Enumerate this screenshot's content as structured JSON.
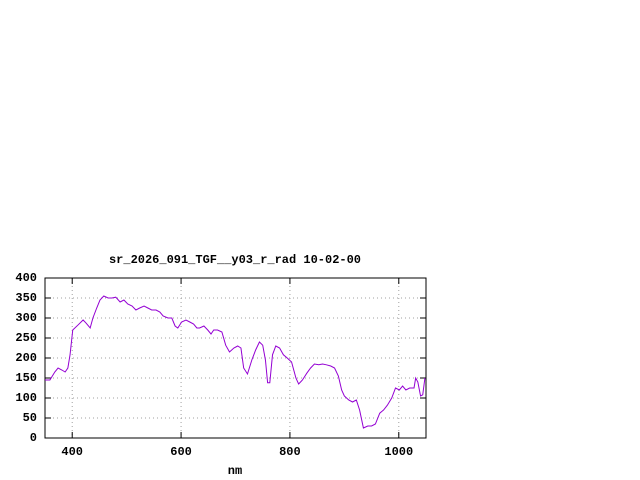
{
  "chart_data": {
    "type": "line",
    "title": "sr_2026_091_TGF__y03_r_rad 10-02-00",
    "x_label": "nm",
    "xlim": [
      350,
      1050
    ],
    "xticks": [
      400,
      600,
      800,
      1000
    ],
    "ylim": [
      0,
      400
    ],
    "yticks": [
      0,
      50,
      100,
      150,
      200,
      250,
      300,
      350,
      400
    ],
    "grid": true,
    "series": [
      {
        "color": "#9400d3",
        "x": [
          350,
          359,
          368,
          374,
          381,
          387,
          392,
          396,
          401,
          411,
          420,
          425,
          433,
          438,
          445,
          451,
          458,
          466,
          473,
          480,
          488,
          495,
          502,
          510,
          517,
          524,
          532,
          539,
          546,
          554,
          561,
          567,
          576,
          583,
          589,
          594,
          601,
          609,
          616,
          623,
          629,
          634,
          642,
          649,
          655,
          660,
          667,
          675,
          682,
          689,
          697,
          704,
          710,
          715,
          722,
          730,
          737,
          744,
          750,
          755,
          759,
          763,
          768,
          774,
          781,
          788,
          795,
          803,
          811,
          816,
          823,
          831,
          838,
          845,
          853,
          860,
          867,
          875,
          882,
          889,
          895,
          900,
          908,
          915,
          922,
          928,
          935,
          943,
          950,
          957,
          965,
          972,
          979,
          987,
          994,
          1001,
          1007,
          1013,
          1020,
          1028,
          1031,
          1035,
          1040,
          1044,
          1048
        ],
        "values": [
          145,
          145,
          165,
          175,
          170,
          165,
          175,
          208,
          270,
          283,
          295,
          288,
          275,
          300,
          325,
          345,
          355,
          350,
          350,
          352,
          340,
          345,
          335,
          330,
          320,
          325,
          330,
          325,
          320,
          320,
          315,
          305,
          300,
          300,
          280,
          275,
          290,
          295,
          290,
          285,
          275,
          275,
          280,
          270,
          260,
          270,
          270,
          265,
          232,
          215,
          225,
          230,
          225,
          175,
          160,
          195,
          220,
          240,
          232,
          195,
          138,
          138,
          208,
          230,
          225,
          208,
          200,
          190,
          150,
          135,
          145,
          162,
          175,
          185,
          183,
          185,
          183,
          180,
          175,
          155,
          120,
          105,
          95,
          90,
          95,
          70,
          25,
          30,
          30,
          35,
          62,
          70,
          82,
          100,
          125,
          120,
          130,
          120,
          125,
          125,
          150,
          140,
          105,
          108,
          150
        ]
      }
    ]
  }
}
